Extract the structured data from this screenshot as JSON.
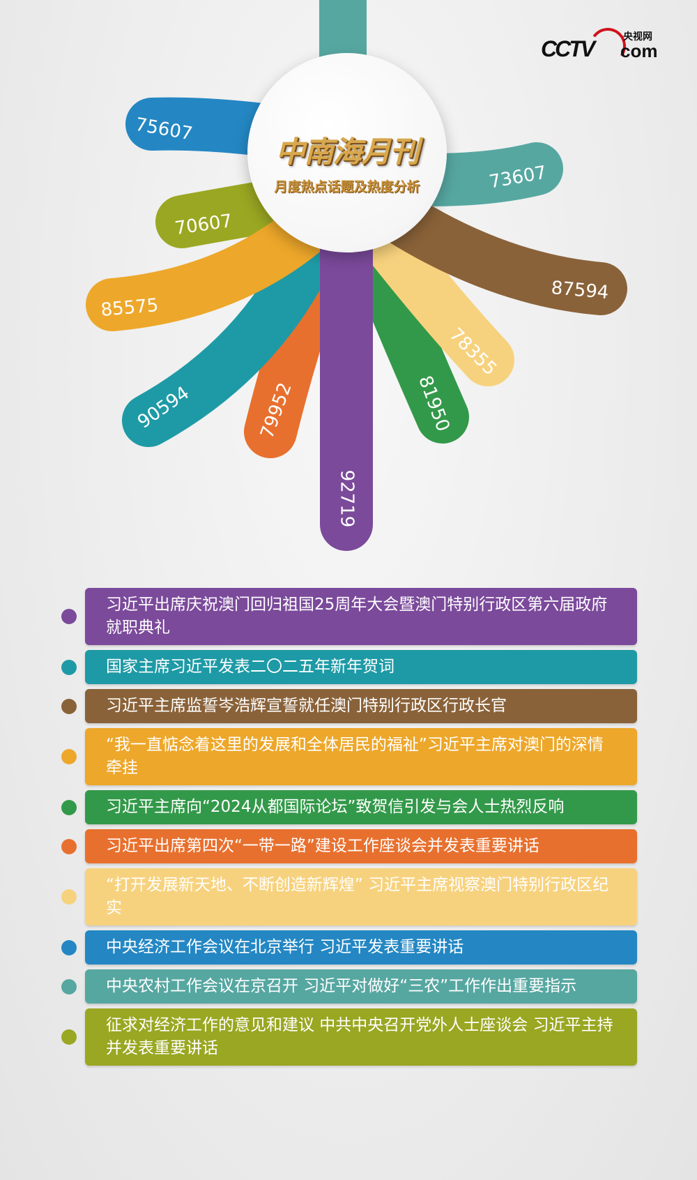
{
  "header": {
    "title": "中南海月刊",
    "subtitle": "月度热点话题及热度分析",
    "logo": {
      "brand": "CCTV",
      "chinese": "央视网",
      "suffix": "com"
    }
  },
  "topics": [
    {
      "value": "92719",
      "color": "#7b4a9b",
      "text": "习近平出席庆祝澳门回归祖国25周年大会暨澳门特别行政区第六届政府就职典礼"
    },
    {
      "value": "90594",
      "color": "#1e9aa6",
      "text": "国家主席习近平发表二〇二五年新年贺词"
    },
    {
      "value": "87594",
      "color": "#8a6239",
      "text": "习近平主席监誓岑浩辉宣誓就任澳门特别行政区行政长官"
    },
    {
      "value": "85575",
      "color": "#eda72a",
      "text": "“我一直惦念着这里的发展和全体居民的福祉”习近平主席对澳门的深情牵挂"
    },
    {
      "value": "81950",
      "color": "#33994a",
      "text": "习近平主席向“2024从都国际论坛”致贺信引发与会人士热烈反响"
    },
    {
      "value": "79952",
      "color": "#e8702e",
      "text": "习近平出席第四次“一带一路”建设工作座谈会并发表重要讲话"
    },
    {
      "value": "78355",
      "color": "#f7d27e",
      "text": "“打开发展新天地、不断创造新辉煌” 习近平主席视察澳门特别行政区纪实"
    },
    {
      "value": "75607",
      "color": "#2487c3",
      "text": "中央经济工作会议在北京举行 习近平发表重要讲话"
    },
    {
      "value": "73607",
      "color": "#57a7a1",
      "text": "中央农村工作会议在京召开 习近平对做好“三农”工作作出重要指示"
    },
    {
      "value": "70607",
      "color": "#9aa722",
      "text": "征求对经济工作的意见和建议 中共中央召开党外人士座谈会 习近平主持并发表重要讲话"
    }
  ]
}
